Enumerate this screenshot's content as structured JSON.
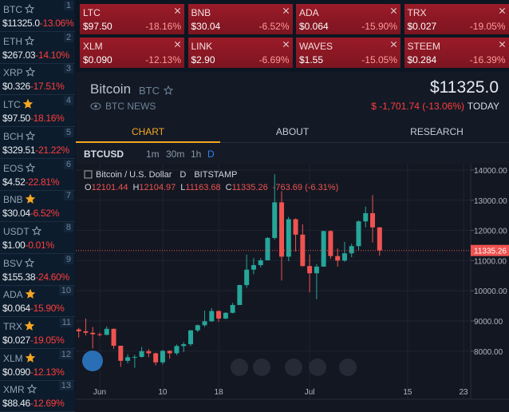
{
  "sidebar": [
    {
      "symbol": "BTC",
      "rank": "1",
      "price": "$11325.0",
      "change": "-13.06%",
      "starred": false
    },
    {
      "symbol": "ETH",
      "rank": "2",
      "price": "$267.03",
      "change": "-14.10%",
      "starred": false
    },
    {
      "symbol": "XRP",
      "rank": "3",
      "price": "$0.326",
      "change": "-17.51%",
      "starred": false
    },
    {
      "symbol": "LTC",
      "rank": "4",
      "price": "$97.50",
      "change": "-18.16%",
      "starred": true
    },
    {
      "symbol": "BCH",
      "rank": "5",
      "price": "$329.51",
      "change": "-21.22%",
      "starred": false
    },
    {
      "symbol": "EOS",
      "rank": "6",
      "price": "$4.52",
      "change": "-22.81%",
      "starred": false
    },
    {
      "symbol": "BNB",
      "rank": "7",
      "price": "$30.04",
      "change": "-6.52%",
      "starred": true
    },
    {
      "symbol": "USDT",
      "rank": "8",
      "price": "$1.00",
      "change": "-0.01%",
      "starred": false
    },
    {
      "symbol": "BSV",
      "rank": "9",
      "price": "$155.38",
      "change": "-24.60%",
      "starred": false
    },
    {
      "symbol": "ADA",
      "rank": "10",
      "price": "$0.064",
      "change": "-15.90%",
      "starred": true
    },
    {
      "symbol": "TRX",
      "rank": "11",
      "price": "$0.027",
      "change": "-19.05%",
      "starred": true
    },
    {
      "symbol": "XLM",
      "rank": "12",
      "price": "$0.090",
      "change": "-12.13%",
      "starred": true
    },
    {
      "symbol": "XMR",
      "rank": "13",
      "price": "$88.46",
      "change": "-12.69%",
      "starred": false
    }
  ],
  "tiles": [
    {
      "symbol": "LTC",
      "price": "$97.50",
      "change": "-18.16%"
    },
    {
      "symbol": "BNB",
      "price": "$30.04",
      "change": "-6.52%"
    },
    {
      "symbol": "ADA",
      "price": "$0.064",
      "change": "-15.90%"
    },
    {
      "symbol": "TRX",
      "price": "$0.027",
      "change": "-19.05%"
    },
    {
      "symbol": "XLM",
      "price": "$0.090",
      "change": "-12.13%"
    },
    {
      "symbol": "LINK",
      "price": "$2.90",
      "change": "-6.69%"
    },
    {
      "symbol": "WAVES",
      "price": "$1.55",
      "change": "-15.05%"
    },
    {
      "symbol": "STEEM",
      "price": "$0.284",
      "change": "-16.39%"
    }
  ],
  "header": {
    "name": "Bitcoin",
    "symbol": "BTC",
    "news": "BTC NEWS",
    "price": "$11325.0",
    "change": "$ -1,701.74 (-13.06%)",
    "period": "TODAY"
  },
  "tabs": [
    "CHART",
    "ABOUT",
    "RESEARCH"
  ],
  "active_tab": 0,
  "toolbar": {
    "pair": "BTCUSD",
    "intervals": [
      "1m",
      "30m",
      "1h",
      "D"
    ],
    "active_interval": 3
  },
  "chart_data": {
    "type": "candlestick",
    "title": "Bitcoin / U.S. Dollar",
    "interval": "D",
    "exchange": "BITSTAMP",
    "ohlc_labels": [
      "O",
      "H",
      "L",
      "C"
    ],
    "change": "-763.69 (-6.31%)",
    "categories": [
      null,
      null,
      null,
      "Jun",
      null,
      null,
      null,
      null,
      null,
      null,
      null,
      null,
      "10",
      null,
      null,
      null,
      null,
      null,
      null,
      null,
      "18",
      null,
      null,
      null,
      null,
      null,
      null,
      null,
      null,
      null,
      null,
      null,
      null,
      "Jul",
      null,
      null,
      null,
      null,
      null,
      null,
      null,
      null,
      null,
      null,
      null,
      null,
      null,
      "15",
      null,
      null,
      null,
      null,
      null,
      null,
      null,
      "23",
      null
    ],
    "open": [
      8720,
      8660,
      8610,
      8560,
      8540,
      8740,
      8180,
      7680,
      7800,
      7810,
      8000,
      7930,
      7630,
      8010,
      7930,
      8170,
      8230,
      8690,
      8860,
      8990,
      9330,
      9080,
      9270,
      9530,
      10190,
      10700,
      10850,
      11010,
      11750,
      12930,
      11130,
      12370,
      11860,
      10820,
      10580,
      10800,
      11980,
      11150,
      11000,
      11240,
      11480,
      12300,
      12570,
      12101.44,
      null,
      null,
      null,
      null,
      null,
      null,
      null,
      null,
      null,
      null,
      null,
      null,
      null
    ],
    "high": [
      8770,
      9080,
      8800,
      8620,
      8820,
      8750,
      8180,
      7900,
      7880,
      8140,
      8070,
      7950,
      8040,
      8030,
      8220,
      8300,
      8700,
      8880,
      9340,
      9430,
      9350,
      9290,
      9600,
      10200,
      11200,
      11090,
      11080,
      11780,
      13860,
      13300,
      12450,
      12400,
      12200,
      11200,
      10880,
      11980,
      12000,
      11400,
      11620,
      11560,
      12330,
      12790,
      13170,
      12104.97,
      null,
      null,
      null,
      null,
      null,
      null,
      null,
      null,
      null,
      null,
      null,
      null,
      null
    ],
    "low": [
      8450,
      8520,
      8090,
      8490,
      8530,
      8080,
      7480,
      7600,
      7450,
      7790,
      7800,
      7530,
      7560,
      7750,
      7870,
      7970,
      8170,
      8630,
      8800,
      8970,
      8970,
      9060,
      9250,
      9530,
      10100,
      10550,
      10780,
      11010,
      11700,
      10340,
      10980,
      11300,
      10800,
      9950,
      9720,
      10800,
      11060,
      10800,
      10960,
      11110,
      11340,
      12100,
      11600,
      11163.68,
      null,
      null,
      null,
      null,
      null,
      null,
      null,
      null,
      null,
      null,
      null,
      null,
      null
    ],
    "close": [
      8660,
      8610,
      8560,
      8540,
      8740,
      8180,
      7680,
      7800,
      7810,
      8000,
      7930,
      7630,
      8010,
      7930,
      8170,
      8230,
      8690,
      8860,
      8990,
      9330,
      9080,
      9270,
      9530,
      10190,
      10700,
      10850,
      11010,
      11750,
      12930,
      11130,
      12370,
      11860,
      10820,
      10580,
      10800,
      11980,
      11150,
      11000,
      11240,
      11480,
      12300,
      12570,
      12100,
      11335.26,
      null,
      null,
      null,
      null,
      null,
      null,
      null,
      null,
      null,
      null,
      null,
      null,
      null
    ],
    "ylim": [
      6990,
      14210
    ],
    "yticks": [
      {
        "value": 8000,
        "label": "8000.00"
      },
      {
        "value": 9000,
        "label": "9000.00"
      },
      {
        "value": 10000,
        "label": "10000.00"
      },
      {
        "value": 11000,
        "label": "11000.00"
      },
      {
        "value": 12000,
        "label": "12000.00"
      },
      {
        "value": 13000,
        "label": "13000.00"
      },
      {
        "value": 14000,
        "label": "14000.00"
      }
    ],
    "grid": true,
    "up_color": "#26a69a",
    "down_color": "#ef5350"
  }
}
